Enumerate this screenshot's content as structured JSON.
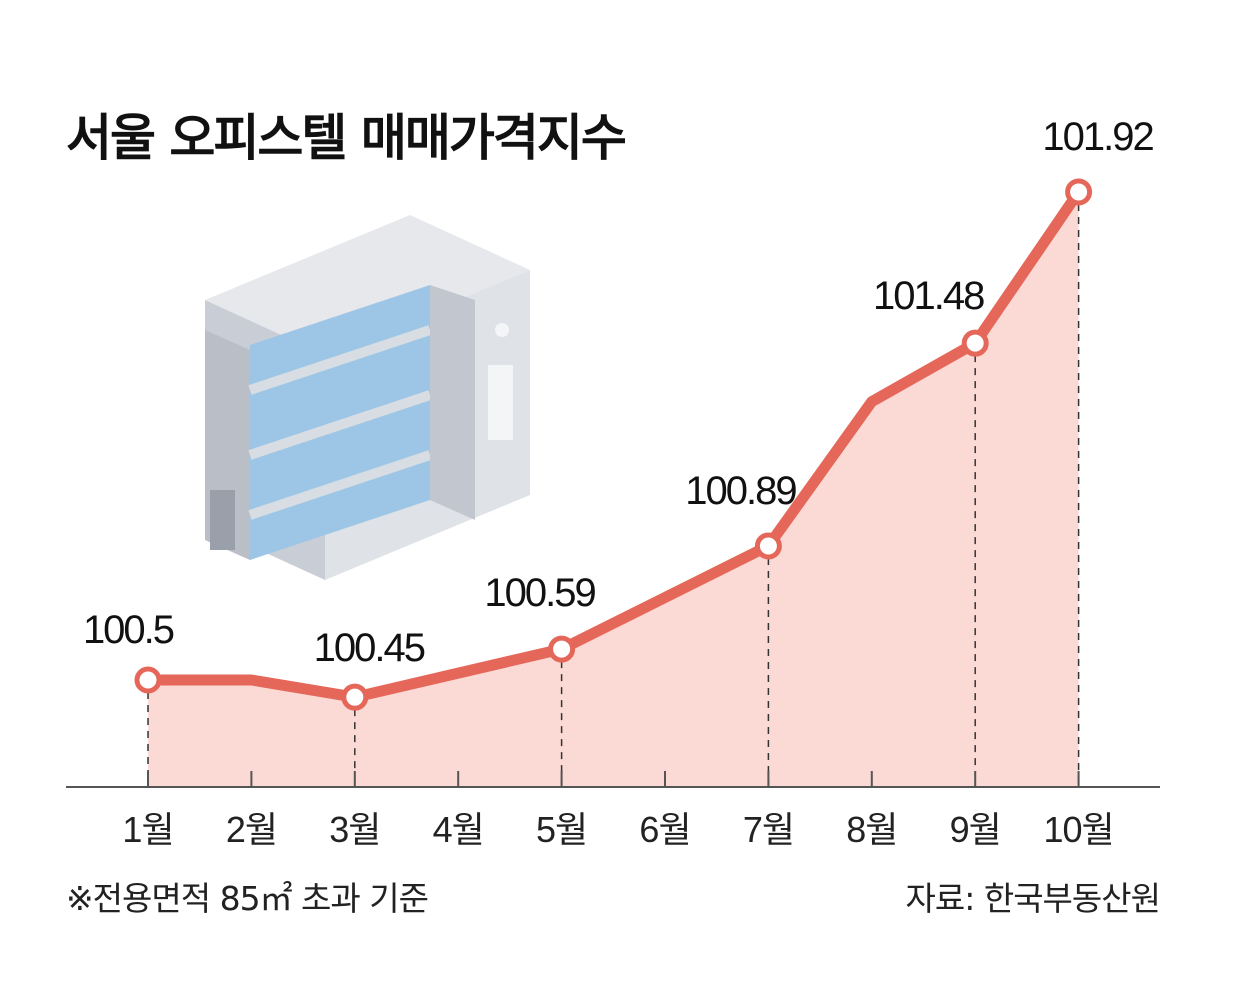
{
  "chart_data": {
    "type": "area",
    "title": "서울 오피스텔 매매가격지수",
    "categories": [
      "1월",
      "2월",
      "3월",
      "4월",
      "5월",
      "6월",
      "7월",
      "8월",
      "9월",
      "10월"
    ],
    "series": [
      {
        "values": [
          100.5,
          100.5,
          100.45,
          100.52,
          100.59,
          100.74,
          100.89,
          101.31,
          101.48,
          101.92
        ],
        "labeled_points": [
          0,
          2,
          4,
          6,
          8,
          9
        ]
      }
    ],
    "data_labels": [
      "100.5",
      "",
      "100.45",
      "",
      "100.59",
      "",
      "100.89",
      "",
      "101.48",
      "101.92"
    ],
    "ylim": [
      100.2,
      102.1
    ],
    "grid": false,
    "colors": {
      "line": "#e5675a",
      "fill": "#fbd9d5",
      "marker_fill": "#ffffff"
    }
  },
  "footnote": "※전용면적 85㎡ 초과 기준",
  "source": "자료: 한국부동산원"
}
